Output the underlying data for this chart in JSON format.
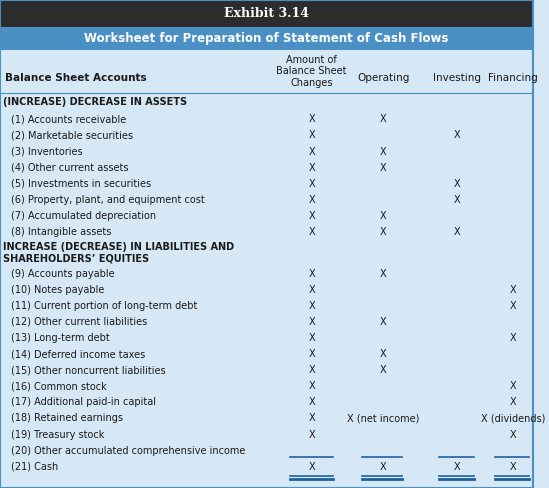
{
  "title1": "Exhibit 3.14",
  "title2": "Worksheet for Preparation of Statement of Cash Flows",
  "header_bg1": "#2c2c2c",
  "header_bg2": "#4a90c4",
  "table_bg": "#d6e8f5",
  "title1_color": "#ffffff",
  "title2_color": "#ffffff",
  "col_headers": [
    "Amount of\nBalance Sheet\nChanges",
    "Operating",
    "Investing",
    "Financing"
  ],
  "col_header_label": "Balance Sheet Accounts",
  "rows": [
    {
      "label": "(INCREASE) DECREASE IN ASSETS",
      "bold": true,
      "indent": 0,
      "changes": "",
      "operating": "",
      "investing": "",
      "financing": ""
    },
    {
      "label": "(1) Accounts receivable",
      "bold": false,
      "indent": 1,
      "changes": "X",
      "operating": "X",
      "investing": "",
      "financing": ""
    },
    {
      "label": "(2) Marketable securities",
      "bold": false,
      "indent": 1,
      "changes": "X",
      "operating": "",
      "investing": "X",
      "financing": ""
    },
    {
      "label": "(3) Inventories",
      "bold": false,
      "indent": 1,
      "changes": "X",
      "operating": "X",
      "investing": "",
      "financing": ""
    },
    {
      "label": "(4) Other current assets",
      "bold": false,
      "indent": 1,
      "changes": "X",
      "operating": "X",
      "investing": "",
      "financing": ""
    },
    {
      "label": "(5) Investments in securities",
      "bold": false,
      "indent": 1,
      "changes": "X",
      "operating": "",
      "investing": "X",
      "financing": ""
    },
    {
      "label": "(6) Property, plant, and equipment cost",
      "bold": false,
      "indent": 1,
      "changes": "X",
      "operating": "",
      "investing": "X",
      "financing": ""
    },
    {
      "label": "(7) Accumulated depreciation",
      "bold": false,
      "indent": 1,
      "changes": "X",
      "operating": "X",
      "investing": "",
      "financing": ""
    },
    {
      "label": "(8) Intangible assets",
      "bold": false,
      "indent": 1,
      "changes": "X",
      "operating": "X",
      "investing": "X",
      "financing": ""
    },
    {
      "label": "INCREASE (DECREASE) IN LIABILITIES AND\nSHAREHOLDERS’ EQUITIES",
      "bold": true,
      "indent": 0,
      "changes": "",
      "operating": "",
      "investing": "",
      "financing": ""
    },
    {
      "label": "(9) Accounts payable",
      "bold": false,
      "indent": 1,
      "changes": "X",
      "operating": "X",
      "investing": "",
      "financing": ""
    },
    {
      "label": "(10) Notes payable",
      "bold": false,
      "indent": 1,
      "changes": "X",
      "operating": "",
      "investing": "",
      "financing": "X"
    },
    {
      "label": "(11) Current portion of long-term debt",
      "bold": false,
      "indent": 1,
      "changes": "X",
      "operating": "",
      "investing": "",
      "financing": "X"
    },
    {
      "label": "(12) Other current liabilities",
      "bold": false,
      "indent": 1,
      "changes": "X",
      "operating": "X",
      "investing": "",
      "financing": ""
    },
    {
      "label": "(13) Long-term debt",
      "bold": false,
      "indent": 1,
      "changes": "X",
      "operating": "",
      "investing": "",
      "financing": "X"
    },
    {
      "label": "(14) Deferred income taxes",
      "bold": false,
      "indent": 1,
      "changes": "X",
      "operating": "X",
      "investing": "",
      "financing": ""
    },
    {
      "label": "(15) Other noncurrent liabilities",
      "bold": false,
      "indent": 1,
      "changes": "X",
      "operating": "X",
      "investing": "",
      "financing": ""
    },
    {
      "label": "(16) Common stock",
      "bold": false,
      "indent": 1,
      "changes": "X",
      "operating": "",
      "investing": "",
      "financing": "X"
    },
    {
      "label": "(17) Additional paid-in capital",
      "bold": false,
      "indent": 1,
      "changes": "X",
      "operating": "",
      "investing": "",
      "financing": "X"
    },
    {
      "label": "(18) Retained earnings",
      "bold": false,
      "indent": 1,
      "changes": "X",
      "operating": "X (net income)",
      "investing": "",
      "financing": "X (dividends)"
    },
    {
      "label": "(19) Treasury stock",
      "bold": false,
      "indent": 1,
      "changes": "X",
      "operating": "",
      "investing": "",
      "financing": "X"
    },
    {
      "label": "(20) Other accumulated comprehensive income",
      "bold": false,
      "indent": 1,
      "changes": "",
      "operating": "",
      "investing": "",
      "financing": ""
    },
    {
      "label": "(21) Cash",
      "bold": false,
      "indent": 1,
      "changes": "X",
      "operating": "X",
      "investing": "X",
      "financing": "X"
    }
  ]
}
